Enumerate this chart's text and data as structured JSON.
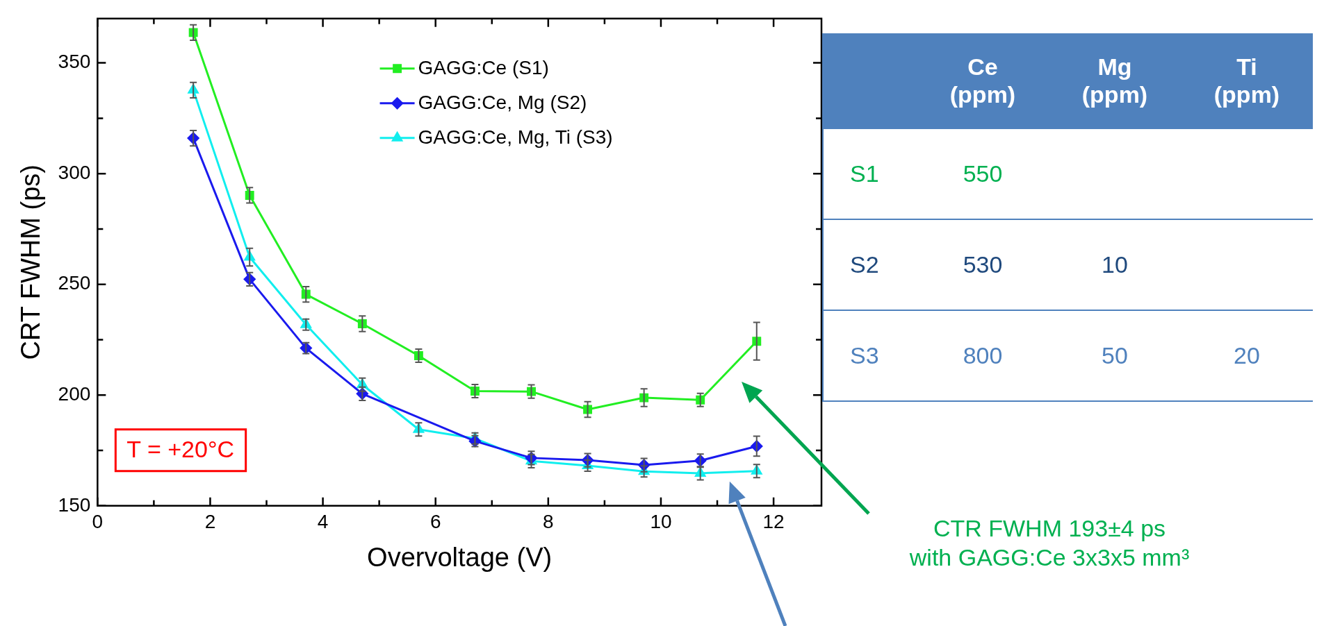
{
  "chart_data": [
    {
      "type": "line",
      "xlabel": "Overvoltage (V)",
      "ylabel": "CRT FWHM (ps)",
      "x": [
        1.7,
        2.7,
        3.7,
        4.7,
        5.7,
        6.7,
        7.7,
        8.7,
        9.7,
        10.7,
        11.7
      ],
      "series": [
        {
          "name": "GAGG:Ce (S1)",
          "color": "#22ee22",
          "marker": "square",
          "values": [
            363.7,
            290.2,
            245.5,
            232.2,
            217.8,
            201.8,
            201.6,
            193.5,
            198.8,
            197.8,
            224.3
          ],
          "errors": [
            3.5,
            3.5,
            3.5,
            3.5,
            3,
            3,
            3,
            3.5,
            4,
            3,
            8.5
          ]
        },
        {
          "name": "GAGG:Ce, Mg (S2)",
          "color": "#1a1aee",
          "marker": "diamond",
          "values": [
            316.0,
            252.3,
            221.2,
            200.6,
            null,
            179.2,
            171.6,
            170.6,
            168.4,
            170.4,
            176.9
          ],
          "errors": [
            3.5,
            3,
            2.5,
            3,
            null,
            2.5,
            3,
            3,
            3,
            3,
            4.5
          ]
        },
        {
          "name": "GAGG:Ce, Mg, Ti (S3)",
          "color": "#11eeee",
          "marker": "triangle",
          "values": [
            337.7,
            262.3,
            231.8,
            204.7,
            184.5,
            180.4,
            170.2,
            168.1,
            165.5,
            164.7,
            165.7
          ],
          "errors": [
            3.5,
            4,
            2.5,
            3,
            3,
            2.5,
            3,
            2.5,
            2.5,
            3,
            3
          ]
        }
      ],
      "xlim": [
        0,
        12.85
      ],
      "xticks": [
        0,
        {
          "value": 1,
          "label": null
        },
        2,
        {
          "value": 3,
          "label": null
        },
        4,
        {
          "value": 5,
          "label": null
        },
        6,
        {
          "value": 7,
          "label": null
        },
        8,
        {
          "value": 9,
          "label": null
        },
        10,
        {
          "value": 11,
          "label": null
        },
        12
      ],
      "ylim": [
        150,
        370
      ],
      "yticks": [
        150,
        {
          "value": 175,
          "label": null
        },
        200,
        {
          "value": 225,
          "label": null
        },
        250,
        {
          "value": 275,
          "label": null
        },
        300,
        {
          "value": 325,
          "label": null
        },
        350
      ],
      "legend": "top",
      "annotations": [
        "T = +20°C",
        "CTR FWHM 193±4 ps\nwith GAGG:Ce 3x3x5 mm³"
      ]
    },
    {
      "type": "other",
      "categories": [
        "Ce (ppm)",
        "Mg (ppm)",
        "Ti (ppm)"
      ],
      "y_categories": [
        "S1",
        "S2",
        "S3"
      ],
      "cell_labels": [
        [
          "550",
          null,
          null
        ],
        [
          "530",
          "10",
          null
        ],
        [
          "800",
          "50",
          "20"
        ]
      ]
    }
  ]
}
